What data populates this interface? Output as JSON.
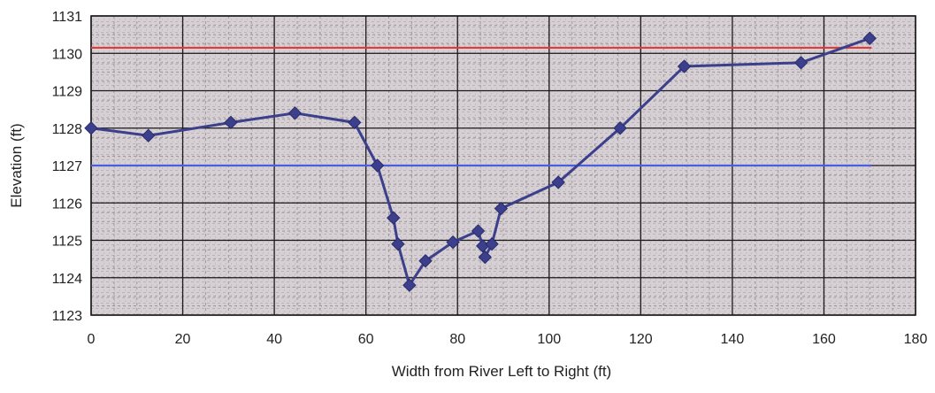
{
  "chart_data": {
    "type": "line",
    "title": "",
    "xlabel": "Width from River Left to Right (ft)",
    "ylabel": "Elevation (ft)",
    "xlim": [
      0,
      180
    ],
    "ylim": [
      1123,
      1131
    ],
    "xticks": [
      0,
      20,
      40,
      60,
      80,
      100,
      120,
      140,
      160,
      180
    ],
    "yticks": [
      1123,
      1124,
      1125,
      1126,
      1127,
      1128,
      1129,
      1130,
      1131
    ],
    "grid": true,
    "legend": "none",
    "series": [
      {
        "marker": "diamond",
        "color": "#3b3f8c",
        "x": [
          0,
          12.5,
          30.5,
          44.5,
          57.5,
          62.5,
          66,
          67,
          69.5,
          73,
          79,
          84.5,
          85.5,
          86,
          87.5,
          89.5,
          102,
          115.5,
          129.5,
          155,
          170
        ],
        "y": [
          1128.0,
          1127.8,
          1128.15,
          1128.4,
          1128.15,
          1127.0,
          1125.6,
          1124.9,
          1123.8,
          1124.45,
          1124.95,
          1125.25,
          1124.85,
          1124.55,
          1124.9,
          1125.85,
          1126.55,
          1128.0,
          1129.65,
          1129.75,
          1130.4
        ]
      }
    ],
    "reference_lines": [
      {
        "y": 1130.15,
        "x_range": [
          0,
          170
        ],
        "color": "#e03a3a"
      },
      {
        "y": 1127.0,
        "x_range": [
          0,
          170
        ],
        "color": "#4a5ee0"
      }
    ]
  }
}
